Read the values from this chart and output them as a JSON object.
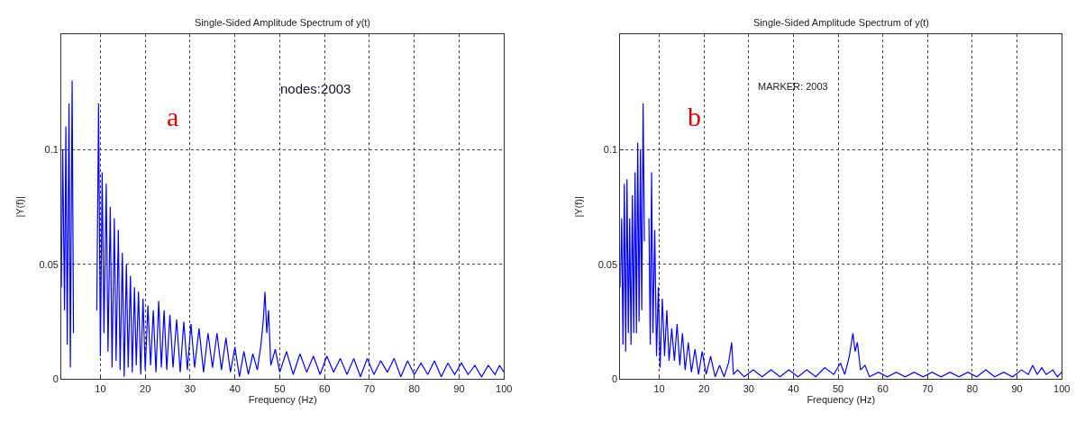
{
  "chart_data": [
    {
      "type": "line",
      "title": "Single-Sided Amplitude Spectrum of y(t)",
      "xlabel": "Frequency (Hz)",
      "ylabel": "|Y(f)|",
      "color": "#0000ff",
      "xlim": [
        1.3,
        100
      ],
      "ylim": [
        0,
        0.15
      ],
      "xticks": [
        10,
        20,
        30,
        40,
        50,
        60,
        70,
        80,
        90,
        100
      ],
      "yticks": [
        0,
        0.05,
        0.1
      ],
      "grid": true,
      "line_style": "solid",
      "annotations": [
        "a",
        "nodes:2003"
      ],
      "x": [
        1.3,
        1.6,
        2.0,
        2.3,
        2.6,
        3.0,
        3.3,
        3.7,
        4.0,
        4.4,
        9.2,
        9.6,
        10.0,
        10.4,
        10.8,
        11.3,
        11.7,
        12.2,
        12.6,
        13.1,
        13.5,
        14.0,
        14.4,
        14.9,
        15.3,
        15.8,
        16.2,
        16.7,
        17.1,
        17.6,
        18.0,
        18.5,
        19.0,
        19.5,
        20.0,
        20.6,
        21.2,
        21.8,
        22.4,
        23.0,
        23.6,
        24.2,
        24.8,
        25.5,
        26.2,
        27.0,
        27.8,
        28.6,
        29.4,
        30.2,
        31.0,
        32.0,
        33.0,
        34.0,
        35.0,
        36.0,
        37.0,
        38.0,
        39.0,
        40.0,
        41.0,
        42.0,
        43.0,
        44.0,
        45.0,
        45.8,
        46.3,
        46.7,
        47.1,
        47.5,
        48.0,
        49.0,
        50.0,
        51.5,
        53.0,
        54.5,
        56.0,
        57.5,
        59.0,
        60.5,
        62.0,
        63.5,
        65.0,
        66.5,
        68.0,
        69.5,
        71.0,
        72.5,
        74.0,
        75.5,
        77.0,
        78.5,
        80.0,
        81.5,
        83.0,
        84.5,
        86.0,
        87.5,
        89.0,
        90.5,
        92.0,
        93.5,
        95.0,
        96.5,
        98.0,
        99.0,
        100
      ],
      "values": [
        0.04,
        0.1,
        0.03,
        0.11,
        0.015,
        0.12,
        0.005,
        0.13,
        0.02,
        null,
        0.03,
        0.12,
        0.01,
        0.09,
        0.02,
        0.085,
        0.012,
        0.075,
        0.005,
        0.07,
        0.008,
        0.065,
        0.004,
        0.055,
        0.001,
        0.05,
        0.005,
        0.045,
        0.003,
        0.04,
        0.006,
        0.038,
        0.002,
        0.035,
        0.004,
        0.032,
        0.006,
        0.03,
        0.003,
        0.034,
        0.005,
        0.03,
        0.004,
        0.028,
        0.005,
        0.026,
        0.003,
        0.025,
        0.004,
        0.024,
        0.005,
        0.022,
        0.003,
        0.02,
        0.005,
        0.02,
        0.004,
        0.018,
        0.003,
        0.014,
        0.001,
        0.012,
        0.002,
        0.011,
        0.004,
        0.015,
        0.025,
        0.038,
        0.02,
        0.03,
        0.006,
        0.013,
        0.003,
        0.012,
        0.002,
        0.011,
        0.003,
        0.01,
        0.002,
        0.01,
        0.003,
        0.009,
        0.002,
        0.009,
        0.001,
        0.009,
        0.002,
        0.008,
        0.003,
        0.009,
        0.001,
        0.008,
        0.002,
        0.007,
        0.002,
        0.008,
        0.001,
        0.007,
        0.002,
        0.007,
        0.002,
        0.006,
        0.001,
        0.006,
        0.002,
        0.006,
        0.003
      ]
    },
    {
      "type": "line",
      "title": "Single-Sided Amplitude Spectrum of y(t)",
      "xlabel": "Frequency (Hz)",
      "ylabel": "|Y(f)|",
      "color": "#0000ff",
      "xlim": [
        1.3,
        100
      ],
      "ylim": [
        0,
        0.15
      ],
      "xticks": [
        10,
        20,
        30,
        40,
        50,
        60,
        70,
        80,
        90,
        100
      ],
      "yticks": [
        0,
        0.05,
        0.1
      ],
      "grid": true,
      "line_style": "solid",
      "annotations": [
        "b",
        "MARKER: 2003"
      ],
      "x": [
        1.3,
        1.6,
        1.9,
        2.2,
        2.5,
        2.8,
        3.1,
        3.4,
        3.7,
        4.0,
        4.3,
        4.6,
        4.9,
        5.2,
        5.5,
        5.8,
        6.1,
        6.4,
        6.7,
        7.0,
        7.4,
        7.7,
        8.0,
        8.3,
        8.6,
        9.0,
        9.4,
        9.8,
        10.2,
        10.7,
        11.2,
        11.7,
        12.2,
        12.8,
        13.4,
        14.0,
        14.6,
        15.2,
        15.8,
        16.5,
        17.2,
        18.0,
        18.8,
        19.6,
        20.5,
        21.5,
        22.5,
        23.5,
        24.5,
        25.5,
        26.2,
        26.6,
        27.5,
        29.0,
        31.0,
        33.0,
        35.0,
        37.0,
        39.0,
        41.0,
        43.0,
        45.0,
        47.0,
        49.0,
        50.5,
        51.5,
        52.5,
        53.3,
        53.8,
        54.3,
        55.0,
        56.0,
        57.0,
        59.0,
        61.0,
        63.0,
        65.0,
        67.0,
        69.0,
        71.0,
        73.0,
        75.0,
        77.0,
        79.0,
        81.0,
        83.0,
        85.0,
        87.0,
        89.0,
        91.0,
        92.5,
        93.5,
        94.5,
        95.5,
        96.5,
        98.0,
        99.0,
        100
      ],
      "values": [
        0.04,
        0.07,
        0.015,
        0.085,
        0.012,
        0.087,
        0.02,
        0.07,
        0.015,
        0.08,
        0.02,
        0.09,
        0.02,
        0.103,
        0.025,
        0.1,
        0.03,
        0.12,
        0.06,
        null,
        null,
        0.07,
        0.015,
        0.09,
        0.02,
        0.065,
        0.01,
        0.04,
        0.005,
        0.035,
        0.01,
        0.03,
        0.008,
        0.022,
        0.008,
        0.024,
        0.006,
        0.02,
        0.004,
        0.016,
        0.003,
        0.013,
        0.002,
        0.012,
        0.002,
        0.01,
        0.001,
        0.006,
        0.001,
        0.007,
        0.016,
        0.002,
        0.004,
        0.001,
        0.004,
        0.001,
        0.004,
        0.001,
        0.004,
        0.001,
        0.004,
        0.001,
        0.005,
        0.002,
        0.007,
        0.002,
        0.01,
        0.02,
        0.012,
        0.016,
        0.004,
        0.006,
        0.001,
        0.003,
        0.001,
        0.003,
        0.001,
        0.003,
        0.001,
        0.003,
        0.001,
        0.003,
        0.001,
        0.003,
        0.001,
        0.004,
        0.001,
        0.003,
        0.001,
        0.004,
        0.002,
        0.006,
        0.002,
        0.005,
        0.002,
        0.004,
        0.001,
        0.003
      ]
    }
  ]
}
